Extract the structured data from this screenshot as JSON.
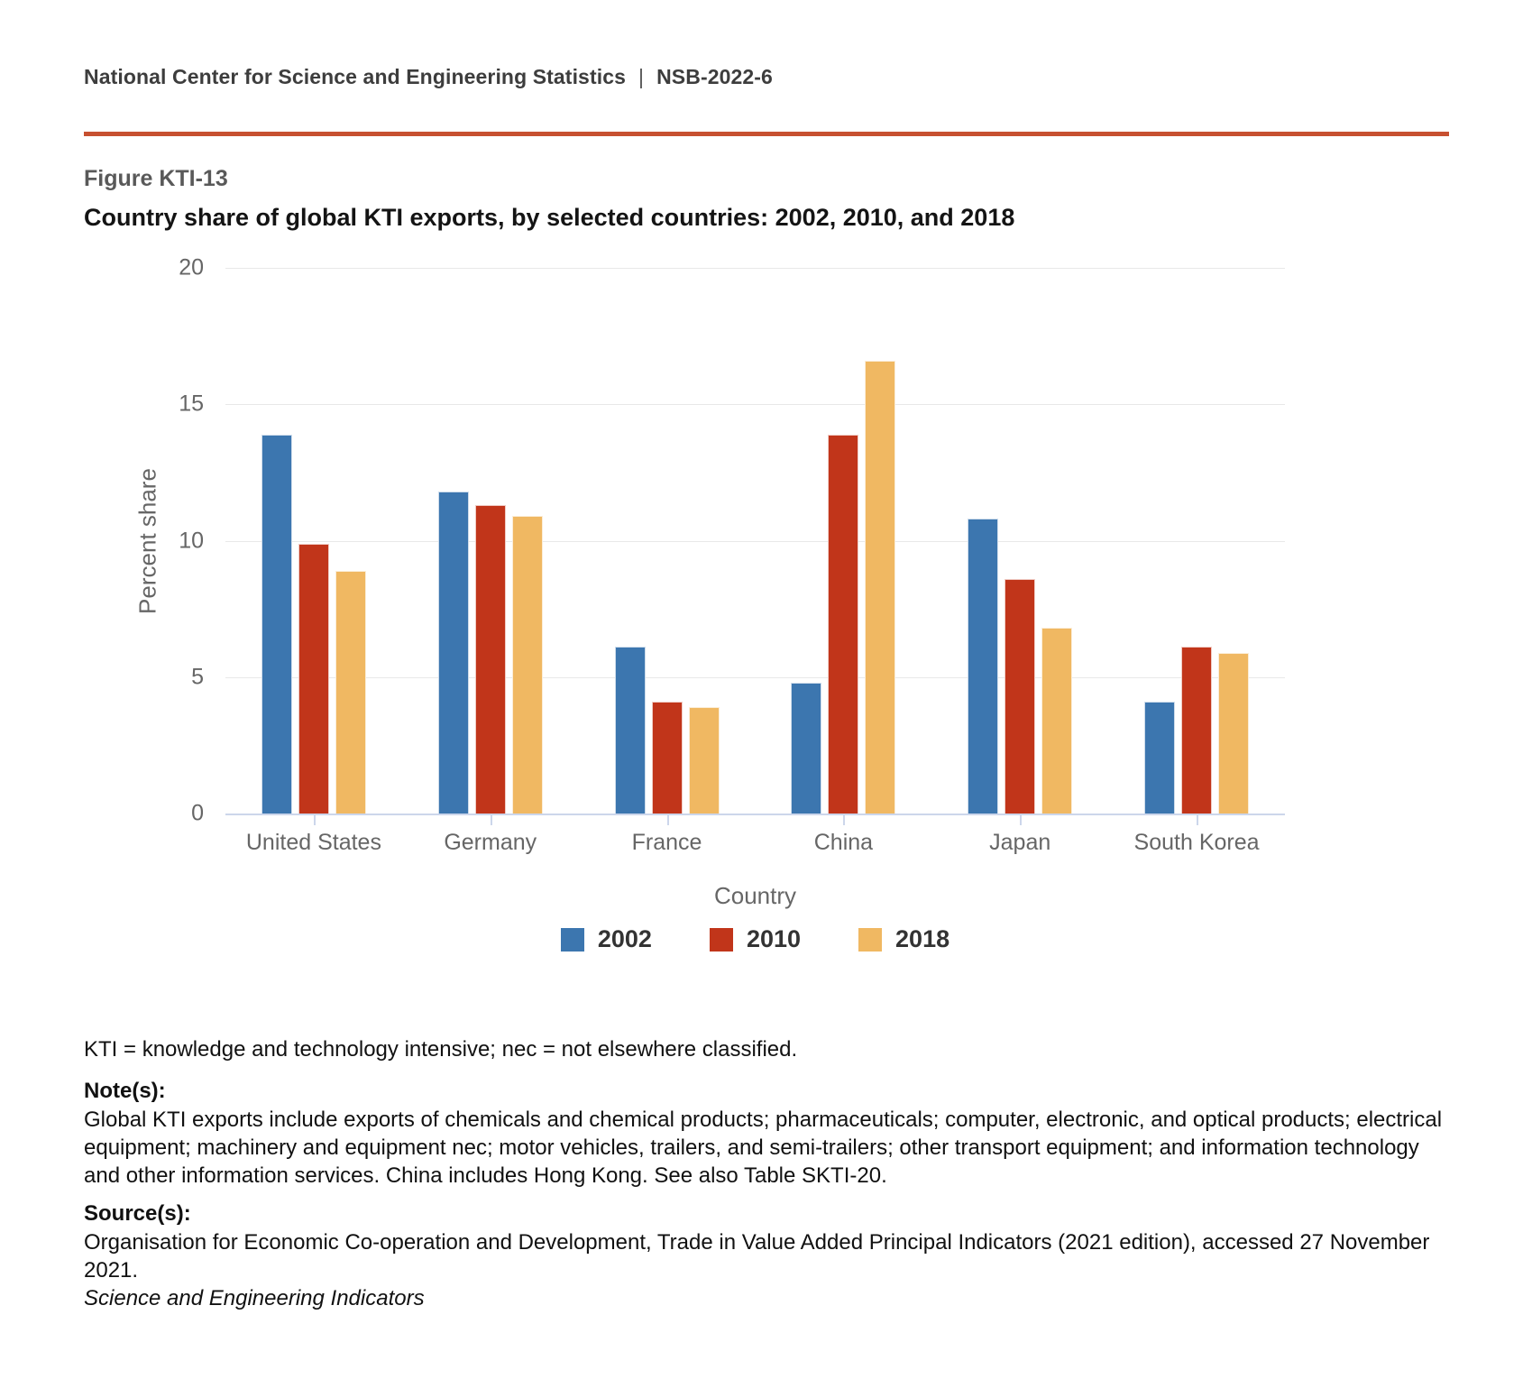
{
  "header": {
    "org": "National Center for Science and Engineering Statistics",
    "separator": "|",
    "doc_id": "NSB-2022-6"
  },
  "figure": {
    "label": "Figure KTI-13",
    "title": "Country share of global KTI exports, by selected countries: 2002, 2010, and 2018"
  },
  "chart_data": {
    "type": "bar",
    "title": "Country share of global KTI exports, by selected countries: 2002, 2010, and 2018",
    "categories": [
      "United States",
      "Germany",
      "France",
      "China",
      "Japan",
      "South Korea"
    ],
    "series": [
      {
        "name": "2002",
        "color": "#3c76af",
        "values": [
          13.9,
          11.8,
          6.1,
          4.8,
          10.8,
          4.1
        ]
      },
      {
        "name": "2010",
        "color": "#c1351a",
        "values": [
          9.9,
          11.3,
          4.1,
          13.9,
          8.6,
          6.1
        ]
      },
      {
        "name": "2018",
        "color": "#f0b862",
        "values": [
          8.9,
          10.9,
          3.9,
          16.6,
          6.8,
          5.9
        ]
      }
    ],
    "xlabel": "Country",
    "ylabel": "Percent share",
    "ylim": [
      0,
      20
    ],
    "yticks": [
      20,
      15,
      10,
      5,
      0
    ],
    "grid": true,
    "legend_position": "bottom"
  },
  "footnotes": {
    "abbreviation": "KTI = knowledge and technology intensive; nec = not elsewhere classified.",
    "notes_heading": "Note(s):",
    "notes_body": "Global KTI exports include exports of chemicals and chemical products; pharmaceuticals; computer, electronic, and optical products; electrical equipment; machinery and equipment nec; motor vehicles, trailers, and semi-trailers; other transport equipment; and information technology and other information services. China includes Hong Kong. See also Table SKTI-20.",
    "source_heading": "Source(s):",
    "source_body": "Organisation for Economic Co-operation and Development, Trade in Value Added Principal Indicators (2021 edition), accessed 27 November 2021.",
    "attribution": "Science and Engineering Indicators"
  },
  "colors": {
    "divider": "#c75030",
    "axis_line": "#ccd6eb",
    "gridline": "#e8e8e8",
    "tick_text": "#666666",
    "legend_text": "#333333"
  }
}
